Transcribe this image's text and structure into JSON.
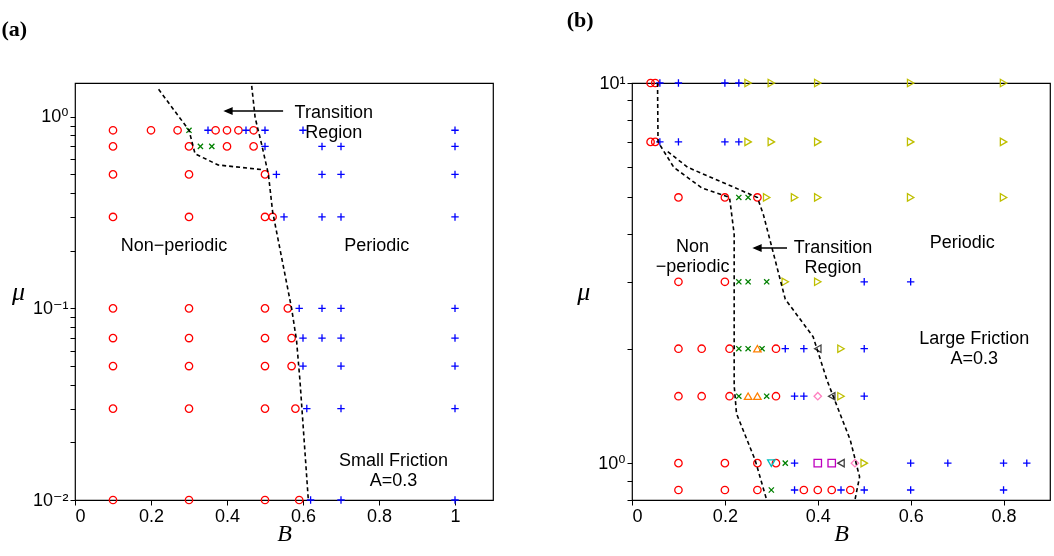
{
  "chart_data": [
    {
      "type": "scatter",
      "title": "(a)",
      "xlabel": "B",
      "ylabel": "μ",
      "log": "y",
      "grid": false,
      "xlim": [
        0,
        1.1
      ],
      "xticks": [
        0,
        0.2,
        0.4,
        0.6,
        0.8,
        1
      ],
      "ylim": [
        0.01,
        1.5
      ],
      "yticks": [
        {
          "value": 0.01,
          "label": "10⁻²"
        },
        {
          "value": 0.02,
          "label": null
        },
        {
          "value": 0.03,
          "label": null
        },
        {
          "value": 0.04,
          "label": null
        },
        {
          "value": 0.05,
          "label": null
        },
        {
          "value": 0.06,
          "label": null
        },
        {
          "value": 0.07,
          "label": null
        },
        {
          "value": 0.08,
          "label": null
        },
        {
          "value": 0.09,
          "label": null
        },
        {
          "value": 0.1,
          "label": "10⁻¹"
        },
        {
          "value": 0.2,
          "label": null
        },
        {
          "value": 0.3,
          "label": null
        },
        {
          "value": 0.4,
          "label": null
        },
        {
          "value": 0.5,
          "label": null
        },
        {
          "value": 0.6,
          "label": null
        },
        {
          "value": 0.7,
          "label": null
        },
        {
          "value": 0.8,
          "label": null
        },
        {
          "value": 0.9,
          "label": null
        },
        {
          "value": 1,
          "label": "10⁰"
        }
      ],
      "series": [
        {
          "marker": "circle",
          "color": "#ff0000",
          "x": [
            0.1,
            0.2,
            0.27,
            0.37,
            0.4,
            0.43,
            0.47,
            0.1,
            0.3,
            0.4,
            0.47,
            0.1,
            0.3,
            0.5,
            0.1,
            0.3,
            0.5,
            0.52,
            0.1,
            0.3,
            0.5,
            0.56,
            0.1,
            0.3,
            0.5,
            0.57,
            0.1,
            0.3,
            0.5,
            0.57,
            0.1,
            0.3,
            0.5,
            0.58,
            0.1,
            0.3,
            0.5,
            0.59
          ],
          "values": [
            0.85,
            0.85,
            0.85,
            0.85,
            0.85,
            0.85,
            0.85,
            0.7,
            0.7,
            0.7,
            0.7,
            0.5,
            0.5,
            0.5,
            0.3,
            0.3,
            0.3,
            0.3,
            0.1,
            0.1,
            0.1,
            0.1,
            0.07,
            0.07,
            0.07,
            0.07,
            0.05,
            0.05,
            0.05,
            0.05,
            0.03,
            0.03,
            0.03,
            0.03,
            0.01,
            0.01,
            0.01,
            0.01
          ]
        },
        {
          "marker": "plus",
          "color": "#0000ff",
          "x": [
            0.35,
            0.45,
            0.5,
            0.6,
            1,
            0.5,
            0.65,
            0.7,
            1,
            0.53,
            0.65,
            0.7,
            1,
            0.55,
            0.65,
            0.7,
            1,
            0.59,
            0.65,
            0.7,
            1,
            0.6,
            0.65,
            0.7,
            1,
            0.6,
            0.7,
            1,
            0.61,
            0.7,
            1,
            0.62,
            0.7,
            1
          ],
          "values": [
            0.85,
            0.85,
            0.85,
            0.85,
            0.85,
            0.7,
            0.7,
            0.7,
            0.7,
            0.5,
            0.5,
            0.5,
            0.5,
            0.3,
            0.3,
            0.3,
            0.3,
            0.1,
            0.1,
            0.1,
            0.1,
            0.07,
            0.07,
            0.07,
            0.07,
            0.05,
            0.05,
            0.05,
            0.03,
            0.03,
            0.03,
            0.01,
            0.01,
            0.01
          ]
        },
        {
          "marker": "x",
          "color": "#008000",
          "x": [
            0.3,
            0.33,
            0.36
          ],
          "values": [
            0.85,
            0.7,
            0.7
          ]
        },
        {
          "type": "line",
          "line_style": "dashed",
          "color": "#000000",
          "x": [
            0.22,
            0.3,
            0.316,
            0.377,
            0.49
          ],
          "values": [
            1.39,
            0.85,
            0.64,
            0.56,
            0.53
          ]
        },
        {
          "type": "line",
          "line_style": "dashed",
          "color": "#000000",
          "x": [
            0.465,
            0.474,
            0.491,
            0.509,
            0.52,
            0.57,
            0.583,
            0.592,
            0.614
          ],
          "values": [
            1.45,
            0.99,
            0.72,
            0.5,
            0.32,
            0.1,
            0.068,
            0.042,
            0.01
          ]
        }
      ],
      "annotations": [
        "Transition\nRegion",
        "Non−periodic",
        "Periodic",
        "Small Friction\nA=0.3"
      ]
    },
    {
      "type": "scatter",
      "title": "(b)",
      "xlabel": "B",
      "ylabel": "μ",
      "log": "y",
      "grid": false,
      "xlim": [
        0,
        0.9
      ],
      "xticks": [
        0,
        0.2,
        0.4,
        0.6,
        0.8
      ],
      "ylim": [
        0.8,
        10
      ],
      "yticks": [
        {
          "value": 0.8,
          "label": null
        },
        {
          "value": 0.9,
          "label": null
        },
        {
          "value": 1,
          "label": "10⁰"
        },
        {
          "value": 2,
          "label": null
        },
        {
          "value": 3,
          "label": null
        },
        {
          "value": 4,
          "label": null
        },
        {
          "value": 5,
          "label": null
        },
        {
          "value": 6,
          "label": null
        },
        {
          "value": 7,
          "label": null
        },
        {
          "value": 8,
          "label": null
        },
        {
          "value": 9,
          "label": null
        },
        {
          "value": 10,
          "label": "10¹"
        }
      ],
      "series": [
        {
          "marker": "circle",
          "color": "#ff0000",
          "x": [
            0.04,
            0.05,
            0.04,
            0.05,
            0.1,
            0.2,
            0.27,
            0.1,
            0.2,
            0.1,
            0.15,
            0.21,
            0.31,
            0.1,
            0.15,
            0.21,
            0.31,
            0.1,
            0.2,
            0.27,
            0.31,
            0.1,
            0.2,
            0.27,
            0.37,
            0.4,
            0.43,
            0.47
          ],
          "values": [
            10,
            10,
            7,
            7,
            5,
            5,
            5,
            3,
            3,
            2,
            2,
            2,
            2,
            1.5,
            1.5,
            1.5,
            1.5,
            1,
            1,
            1,
            1,
            0.85,
            0.85,
            0.85,
            0.85,
            0.85,
            0.85,
            0.85
          ]
        },
        {
          "marker": "plus",
          "color": "#0000ff",
          "x": [
            0.06,
            0.1,
            0.2,
            0.23,
            0.06,
            0.1,
            0.2,
            0.23,
            0.5,
            0.6,
            0.33,
            0.37,
            0.5,
            0.35,
            0.37,
            0.5,
            0.35,
            0.6,
            0.68,
            0.8,
            0.85,
            0.35,
            0.45,
            0.5,
            0.6,
            0.8
          ],
          "values": [
            10,
            10,
            10,
            10,
            7,
            7,
            7,
            7,
            3,
            3,
            2,
            2,
            2,
            1.5,
            1.5,
            1.5,
            1,
            1,
            1,
            1,
            1,
            0.85,
            0.85,
            0.85,
            0.85,
            0.85
          ]
        },
        {
          "marker": "x",
          "color": "#008000",
          "x": [
            0.23,
            0.25,
            0.23,
            0.25,
            0.29,
            0.23,
            0.25,
            0.28,
            0.23,
            0.29,
            0.33,
            0.3
          ],
          "values": [
            5,
            5,
            3,
            3,
            3,
            2,
            2,
            2,
            1.5,
            1.5,
            1,
            0.85
          ]
        },
        {
          "marker": "triangle-right",
          "color": "#bfbf00",
          "x": [
            0.25,
            0.3,
            0.4,
            0.6,
            0.8,
            0.25,
            0.3,
            0.4,
            0.6,
            0.8,
            0.29,
            0.35,
            0.4,
            0.6,
            0.8,
            0.33,
            0.4,
            0.45,
            0.45,
            0.5
          ],
          "values": [
            10,
            10,
            10,
            10,
            10,
            7,
            7,
            7,
            7,
            7,
            5,
            5,
            5,
            5,
            5,
            3,
            3,
            2,
            1.5,
            1
          ]
        },
        {
          "marker": "triangle-up",
          "color": "#ff8000",
          "x": [
            0.27,
            0.25,
            0.27
          ],
          "values": [
            2,
            1.5,
            1.5
          ]
        },
        {
          "marker": "triangle-left",
          "color": "#404040",
          "x": [
            0.4,
            0.43,
            0.45
          ],
          "values": [
            2,
            1.5,
            1
          ]
        },
        {
          "marker": "diamond",
          "color": "#ff80c0",
          "x": [
            0.4,
            0.48
          ],
          "values": [
            1.5,
            1
          ]
        },
        {
          "marker": "square",
          "color": "#bf00bf",
          "x": [
            0.4,
            0.43
          ],
          "values": [
            1,
            1
          ]
        },
        {
          "marker": "triangle-down",
          "color": "#00bfbf",
          "x": [
            0.3
          ],
          "values": [
            1
          ]
        },
        {
          "type": "line",
          "line_style": "dashed",
          "color": "#000000",
          "x": [
            0.055,
            0.056,
            0.09,
            0.15,
            0.21,
            0.22,
            0.22,
            0.22,
            0.225,
            0.265,
            0.29
          ],
          "values": [
            10,
            7,
            6,
            5.3,
            5,
            4,
            2.7,
            1.6,
            1.35,
            1.02,
            0.8
          ]
        },
        {
          "type": "line",
          "line_style": "dashed",
          "color": "#000000",
          "x": [
            0.077,
            0.12,
            0.27,
            0.283,
            0.33,
            0.39,
            0.42,
            0.47,
            0.49,
            0.48
          ],
          "values": [
            6.6,
            6,
            5,
            4.5,
            2.7,
            2.15,
            1.65,
            1.15,
            0.92,
            0.8
          ]
        }
      ],
      "annotations": [
        "Transition\nRegion",
        "Non\n−periodic",
        "Periodic",
        "Large Friction\nA=0.3"
      ]
    }
  ]
}
